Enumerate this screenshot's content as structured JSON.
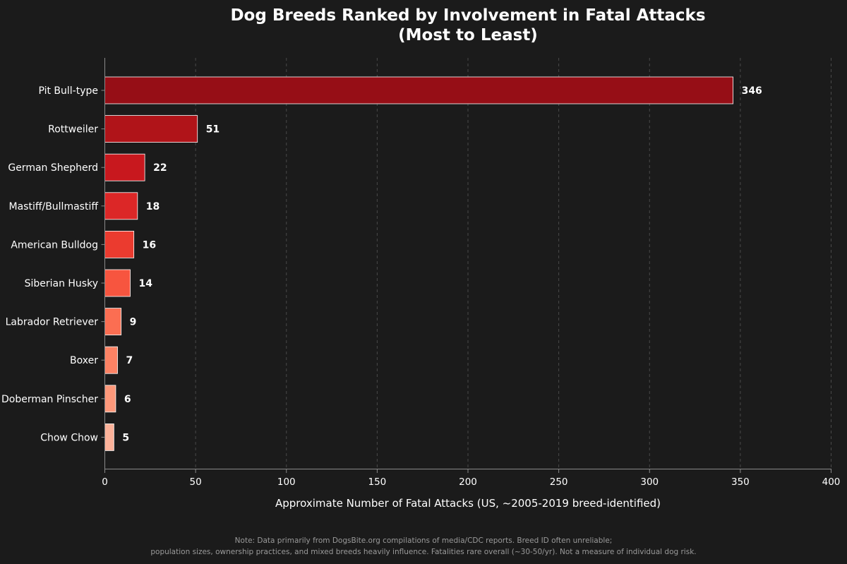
{
  "chart_data": {
    "type": "bar",
    "orientation": "horizontal",
    "title": "Dog Breeds Ranked by Involvement in Fatal Attacks",
    "subtitle": "(Most to Least)",
    "xlabel": "Approximate Number of Fatal Attacks (US, ~2005-2019 breed-identified)",
    "ylabel": "",
    "xlim": [
      0,
      400
    ],
    "xticks": [
      0,
      50,
      100,
      150,
      200,
      250,
      300,
      350,
      400
    ],
    "grid": "x-dashed",
    "categories": [
      "Pit Bull-type",
      "Rottweiler",
      "German Shepherd",
      "Mastiff/Bullmastiff",
      "American Bulldog",
      "Siberian Husky",
      "Labrador Retriever",
      "Boxer",
      "Doberman Pinscher",
      "Chow Chow"
    ],
    "values": [
      346,
      51,
      22,
      18,
      16,
      14,
      9,
      7,
      6,
      5
    ],
    "colors": [
      "#960e16",
      "#b01419",
      "#c8181e",
      "#dc2727",
      "#eb3b2f",
      "#f7553f",
      "#fb6e52",
      "#fc8264",
      "#fd987a",
      "#fcb29a"
    ],
    "footnote_lines": [
      "Note: Data primarily from DogsBite.org compilations of media/CDC reports. Breed ID often unreliable;",
      "population sizes, ownership practices, and mixed breeds heavily influence. Fatalities rare overall (~30-50/yr). Not a measure of individual dog risk."
    ]
  }
}
